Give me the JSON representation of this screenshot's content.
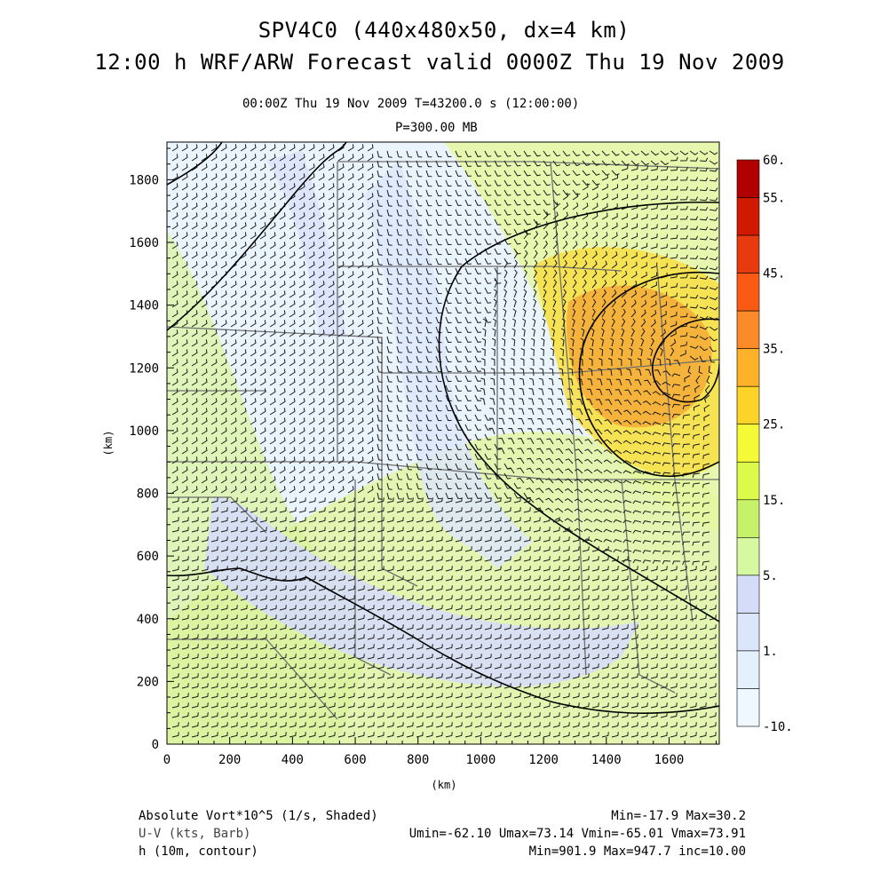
{
  "title": {
    "line1": "SPV4C0 (440x480x50, dx=4 km)",
    "line2": "12:00 h WRF/ARW Forecast valid 0000Z Thu 19 Nov 2009"
  },
  "subtitle": {
    "time": "00:00Z Thu 19 Nov 2009      T=43200.0 s (12:00:00)",
    "level": "P=300.00 MB"
  },
  "axes": {
    "x_ticks": [
      "0",
      "200",
      "400",
      "600",
      "800",
      "1000",
      "1200",
      "1400",
      "1600"
    ],
    "y_ticks": [
      "0",
      "200",
      "400",
      "600",
      "800",
      "1000",
      "1200",
      "1400",
      "1600",
      "1800"
    ],
    "x_label": "(km)",
    "y_label": "(km)"
  },
  "colorbar": {
    "labels": [
      "60.",
      "55.",
      "45.",
      "35.",
      "25.",
      "15.",
      "5.",
      "1.",
      "-10."
    ],
    "colors": [
      "#b00000",
      "#d01a00",
      "#e83a0f",
      "#fa5a14",
      "#fb8a28",
      "#fdb22a",
      "#fdd32a",
      "#f4fa36",
      "#dcfa4a",
      "#c6f26a",
      "#d6f8a0",
      "#d4dcf8",
      "#dce6fa",
      "#e4f0fc",
      "#eef8fe"
    ]
  },
  "footer": {
    "left1": "Absolute Vort*10^5 (1/s, Shaded)",
    "left2": "U-V (kts, Barb)",
    "left3": "h (10m, contour)",
    "right1": "Min=-17.9 Max=30.2",
    "right2": "Umin=-62.10 Umax=73.14 Vmin=-65.01 Vmax=73.91",
    "right3": "Min=901.9 Max=947.7 inc=10.00"
  }
}
